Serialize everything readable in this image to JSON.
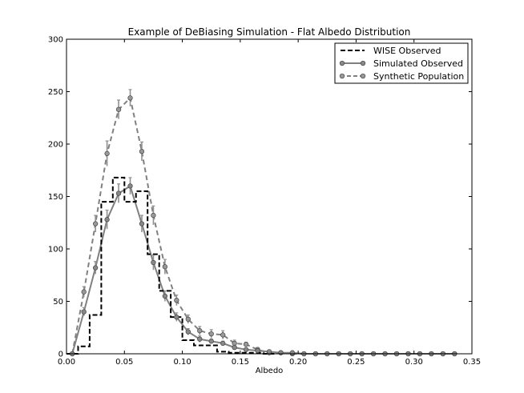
{
  "chart_data": {
    "type": "line",
    "title": "Example of DeBiasing Simulation - Flat Albedo Distribution",
    "xlabel": "Albedo",
    "ylabel": "",
    "xlim": [
      0.0,
      0.35
    ],
    "ylim": [
      0,
      300
    ],
    "x_ticks": [
      0.0,
      0.05,
      0.1,
      0.15,
      0.2,
      0.25,
      0.3,
      0.35
    ],
    "x_tick_labels": [
      "0.00",
      "0.05",
      "0.10",
      "0.15",
      "0.20",
      "0.25",
      "0.30",
      "0.35"
    ],
    "y_ticks": [
      0,
      50,
      100,
      150,
      200,
      250,
      300
    ],
    "y_tick_labels": [
      "0",
      "50",
      "100",
      "150",
      "200",
      "250",
      "300"
    ],
    "grid": false,
    "legend_position": "top-right",
    "legend": [
      {
        "label": "WISE Observed",
        "style": "black-dashed-step"
      },
      {
        "label": "Simulated Observed",
        "style": "gray-solid-circle"
      },
      {
        "label": "Synthetic Population",
        "style": "gray-dashed-circle"
      }
    ],
    "series": [
      {
        "name": "WISE Observed",
        "kind": "step",
        "color": "#000000",
        "bin_edges": [
          0.0,
          0.01,
          0.02,
          0.03,
          0.04,
          0.05,
          0.06,
          0.07,
          0.08,
          0.09,
          0.1,
          0.11,
          0.12,
          0.13,
          0.14,
          0.15,
          0.16,
          0.17,
          0.18
        ],
        "values": [
          0,
          7,
          37,
          145,
          168,
          145,
          155,
          95,
          60,
          35,
          13,
          8,
          8,
          2,
          1,
          1,
          1,
          0
        ]
      },
      {
        "name": "Simulated Observed",
        "kind": "line",
        "color": "#808080",
        "marker_color": "#888888",
        "x": [
          0.005,
          0.015,
          0.025,
          0.035,
          0.045,
          0.055,
          0.065,
          0.075,
          0.085,
          0.095,
          0.105,
          0.115,
          0.125,
          0.135,
          0.145,
          0.155,
          0.165,
          0.175,
          0.185,
          0.195,
          0.205,
          0.215,
          0.225,
          0.235,
          0.245,
          0.255,
          0.265,
          0.275,
          0.285,
          0.295,
          0.305,
          0.315,
          0.325,
          0.335
        ],
        "y": [
          0,
          40,
          82,
          128,
          153,
          160,
          124,
          87,
          55,
          35,
          21,
          14,
          12,
          10,
          6,
          4,
          3,
          2,
          1,
          1,
          0,
          0,
          0,
          0,
          0,
          0,
          0,
          0,
          0,
          0,
          0,
          0,
          0,
          0
        ],
        "err": [
          0,
          4,
          6,
          9,
          9,
          8,
          8,
          7,
          5,
          4,
          3,
          3,
          2,
          2,
          2,
          1,
          1,
          1,
          0,
          0,
          0,
          0,
          0,
          0,
          0,
          0,
          0,
          0,
          0,
          0,
          0,
          0,
          0,
          0
        ]
      },
      {
        "name": "Synthetic Population",
        "kind": "line",
        "color": "#808080",
        "marker_color": "#999999",
        "x": [
          0.005,
          0.015,
          0.025,
          0.035,
          0.045,
          0.055,
          0.065,
          0.075,
          0.085,
          0.095,
          0.105,
          0.115,
          0.125,
          0.135,
          0.145,
          0.155,
          0.165,
          0.175,
          0.185,
          0.195,
          0.205,
          0.215,
          0.225,
          0.235,
          0.245,
          0.255,
          0.265,
          0.275,
          0.285,
          0.295,
          0.305,
          0.315,
          0.325,
          0.335
        ],
        "y": [
          0,
          59,
          124,
          191,
          233,
          244,
          193,
          132,
          83,
          51,
          33,
          22,
          19,
          18,
          10,
          9,
          4,
          1,
          1,
          0,
          0,
          0,
          0,
          0,
          0,
          0,
          0,
          0,
          0,
          0,
          0,
          0,
          0,
          0
        ],
        "err": [
          0,
          5,
          8,
          12,
          9,
          8,
          9,
          9,
          7,
          5,
          4,
          4,
          4,
          4,
          3,
          2,
          2,
          1,
          0,
          0,
          0,
          0,
          0,
          0,
          0,
          0,
          0,
          0,
          0,
          0,
          0,
          0,
          0,
          0
        ]
      }
    ]
  }
}
